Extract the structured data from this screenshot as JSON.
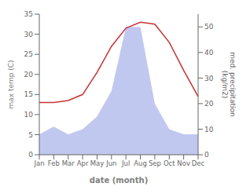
{
  "chart_data": {
    "type": "line",
    "categories": [
      "Jan",
      "Feb",
      "Mar",
      "Apr",
      "May",
      "Jun",
      "Jul",
      "Aug",
      "Sep",
      "Oct",
      "Nov",
      "Dec"
    ],
    "series": [
      {
        "type": "area",
        "color": "#c0c8f0",
        "axis": "y2",
        "values": [
          8.0,
          11.0,
          8.0,
          10.0,
          15.0,
          25.0,
          50.0,
          50.0,
          20.0,
          10.0,
          8.0,
          8.0
        ]
      },
      {
        "type": "line",
        "color": "#c83232",
        "values": [
          13.0,
          13.0,
          13.5,
          15.0,
          20.5,
          27.0,
          31.5,
          33.0,
          32.5,
          28.0,
          21.0,
          14.5
        ]
      }
    ],
    "xlabel": "date (month)",
    "ylabel": "max temp (C)",
    "y2label": "med. precipitation\n(kg/m2)",
    "ylim": [
      0,
      35
    ],
    "yticks": [
      0,
      5,
      10,
      15,
      20,
      25,
      30,
      35
    ],
    "y2lim": [
      0,
      55
    ],
    "y2ticks": [
      0,
      10,
      20,
      30,
      40,
      50
    ],
    "grid": false
  }
}
